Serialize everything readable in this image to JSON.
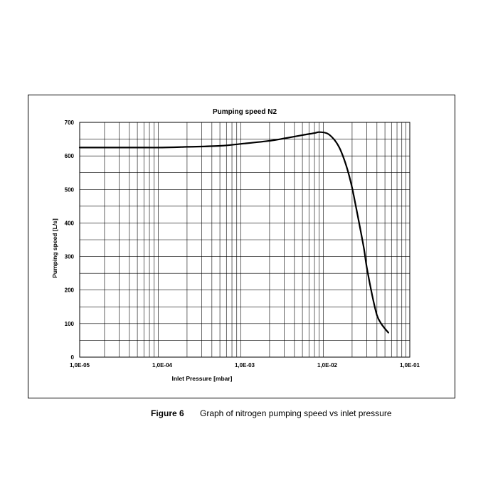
{
  "chart_data": {
    "type": "line",
    "title": "Pumping speed N2",
    "xlabel": "Inlet Pressure [mbar]",
    "ylabel": "Pumping speed [L/s]",
    "x_scale": "log",
    "xlim": [
      1e-05,
      0.1
    ],
    "ylim": [
      0,
      700
    ],
    "x_tick_labels": [
      "1,0E-05",
      "1,0E-04",
      "1,0E-03",
      "1,0E-02",
      "1,0E-01"
    ],
    "y_ticks": [
      0,
      100,
      200,
      300,
      400,
      500,
      600,
      700
    ],
    "grid": true,
    "series": [
      {
        "x": [
          1e-05,
          2e-05,
          5e-05,
          0.0001,
          0.0002,
          0.0005,
          0.001,
          0.002,
          0.003,
          0.005,
          0.007,
          0.008,
          0.01,
          0.012,
          0.014,
          0.016,
          0.018,
          0.02,
          0.022,
          0.025,
          0.028,
          0.03,
          0.035,
          0.04,
          0.045,
          0.05,
          0.055
        ],
        "y": [
          625,
          625,
          625,
          625,
          627,
          630,
          637,
          645,
          652,
          662,
          668,
          671,
          667,
          650,
          625,
          590,
          550,
          505,
          455,
          385,
          320,
          270,
          185,
          125,
          100,
          85,
          73
        ]
      }
    ]
  },
  "caption": {
    "label": "Figure 6",
    "text": "Graph of nitrogen pumping speed vs inlet pressure"
  }
}
